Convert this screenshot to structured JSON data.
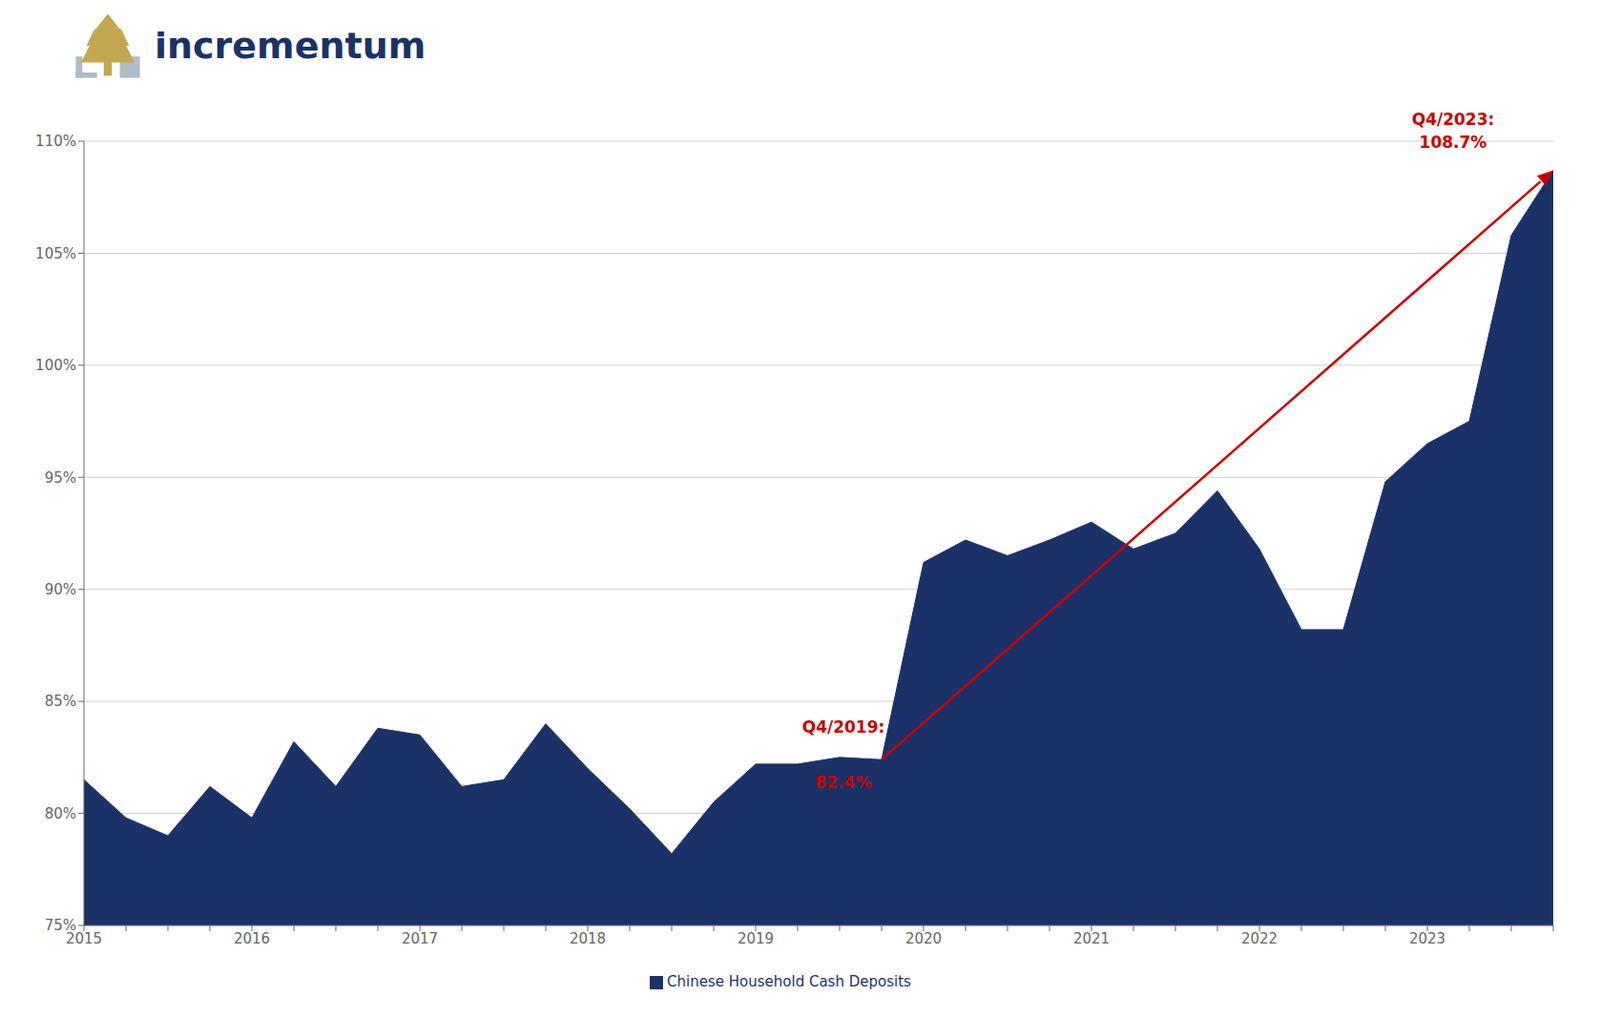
{
  "chart_data": {
    "type": "area",
    "title": "incrementum",
    "categories": [
      "2015",
      null,
      null,
      null,
      "2016",
      null,
      null,
      null,
      "2017",
      null,
      null,
      null,
      "2018",
      null,
      null,
      null,
      "2019",
      null,
      null,
      null,
      "2020",
      null,
      null,
      null,
      "2021",
      null,
      null,
      null,
      "2022",
      null,
      null,
      null,
      "2023",
      null,
      null,
      null
    ],
    "series": [
      {
        "name": "Chinese Household Cash Deposits",
        "color": "#1a3268",
        "values": [
          81.5,
          79.8,
          79.0,
          81.2,
          79.8,
          83.2,
          81.2,
          83.8,
          83.5,
          81.2,
          81.5,
          84.0,
          82.0,
          80.2,
          78.2,
          80.5,
          82.2,
          82.2,
          82.5,
          82.4,
          91.2,
          92.2,
          91.5,
          92.2,
          93.0,
          91.8,
          92.5,
          94.4,
          91.8,
          88.2,
          88.2,
          94.8,
          96.5,
          97.5,
          105.8,
          108.7
        ]
      }
    ],
    "ylim": [
      75,
      110
    ],
    "yticks": [
      {
        "value": 75,
        "label": "75%"
      },
      {
        "value": 80,
        "label": "80%"
      },
      {
        "value": 85,
        "label": "85%"
      },
      {
        "value": 90,
        "label": "90%"
      },
      {
        "value": 95,
        "label": "95%"
      },
      {
        "value": 100,
        "label": "100%"
      },
      {
        "value": 105,
        "label": "105%"
      },
      {
        "value": 110,
        "label": "110%"
      }
    ],
    "grid": true,
    "legend": "bottom",
    "annotations": [
      {
        "type": "arrow",
        "x": 19,
        "y": 82.4,
        "x2": 35,
        "y2": 108.7,
        "color": "#cc0000"
      },
      {
        "x": 19,
        "y": 82.4,
        "text": [
          "Q4/2019:",
          "82.4%"
        ],
        "color": "#cc0000"
      },
      {
        "x": 35,
        "y": 108.7,
        "text": [
          "Q4/2023:",
          "108.7%"
        ],
        "color": "#cc0000"
      }
    ]
  }
}
